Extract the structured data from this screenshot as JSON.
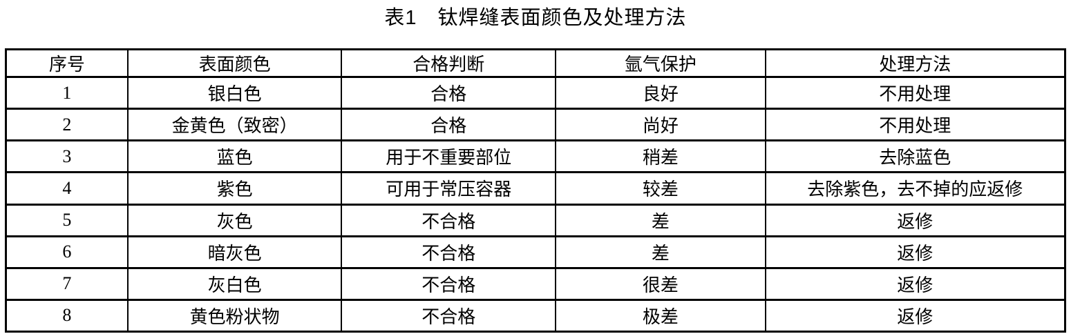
{
  "page": {
    "title": "表1　钛焊缝表面颜色及处理方法"
  },
  "colors": {
    "text": "#000000",
    "border": "#000000",
    "background": "#ffffff"
  },
  "table": {
    "columns": [
      "序号",
      "表面颜色",
      "合格判断",
      "氩气保护",
      "处理方法"
    ],
    "rows": [
      [
        "1",
        "银白色",
        "合格",
        "良好",
        "不用处理"
      ],
      [
        "2",
        "金黄色（致密）",
        "合格",
        "尚好",
        "不用处理"
      ],
      [
        "3",
        "蓝色",
        "用于不重要部位",
        "稍差",
        "去除蓝色"
      ],
      [
        "4",
        "紫色",
        "可用于常压容器",
        "较差",
        "去除紫色，去不掉的应返修"
      ],
      [
        "5",
        "灰色",
        "不合格",
        "差",
        "返修"
      ],
      [
        "6",
        "暗灰色",
        "不合格",
        "差",
        "返修"
      ],
      [
        "7",
        "灰白色",
        "不合格",
        "很差",
        "返修"
      ],
      [
        "8",
        "黄色粉状物",
        "不合格",
        "极差",
        "返修"
      ]
    ]
  }
}
